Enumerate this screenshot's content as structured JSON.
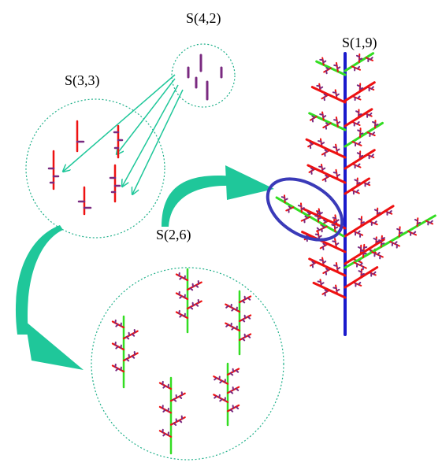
{
  "labels": {
    "s42": "S(4,2)",
    "s33": "S(3,3)",
    "s26": "S(2,6)",
    "s19": "S(1,9)"
  },
  "colors": {
    "circle_outline": "#20b08a",
    "arrow_teal": "#1fc79a",
    "trunk_blue": "#1a1acc",
    "red": "#ee1111",
    "green": "#33dd22",
    "purple": "#7a2a80",
    "highlight_ellipse": "#3a3ab8",
    "text": "#000000"
  }
}
